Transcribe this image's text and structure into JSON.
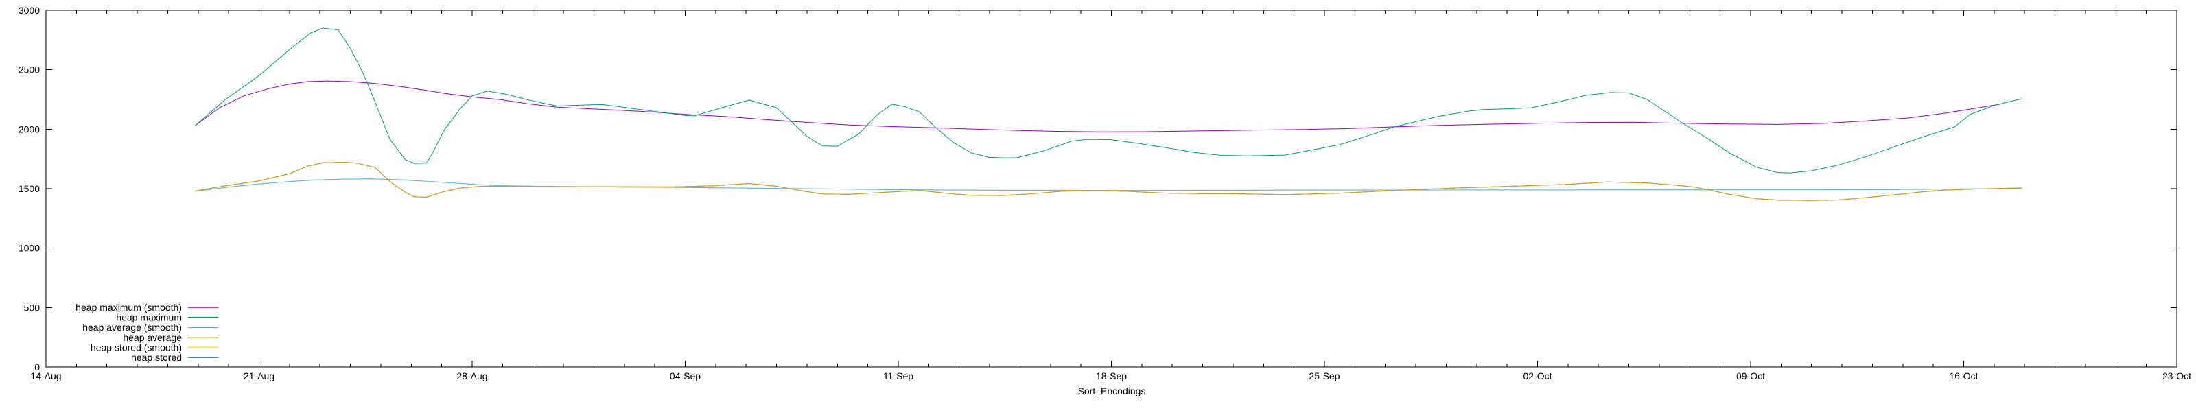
{
  "chart_data": {
    "type": "line",
    "title": "",
    "xlabel": "Sort_Encodings",
    "ylabel": "",
    "x_axis": {
      "tick_labels": [
        "14-Aug",
        "21-Aug",
        "28-Aug",
        "04-Sep",
        "11-Sep",
        "18-Sep",
        "25-Sep",
        "02-Oct",
        "09-Oct",
        "16-Oct",
        "23-Oct"
      ],
      "major_tick_interval_days": 7,
      "minor_tick_interval_days": 1,
      "range_days": [
        0,
        70
      ],
      "mirrored_ticks": true
    },
    "y_axis": {
      "ticks": [
        0,
        500,
        1000,
        1500,
        2000,
        2500,
        3000
      ],
      "range": [
        0,
        3000
      ],
      "mirrored_ticks": true
    },
    "grid": "off",
    "legend": {
      "position": "inside-bottom-left",
      "entries": [
        {
          "label": "heap maximum (smooth)",
          "color": "#9400d3"
        },
        {
          "label": "heap maximum",
          "color": "#009e73"
        },
        {
          "label": "heap average (smooth)",
          "color": "#56b4e9"
        },
        {
          "label": "heap average",
          "color": "#e69f00"
        },
        {
          "label": "heap stored (smooth)",
          "color": "#f0e442"
        },
        {
          "label": "heap stored",
          "color": "#0072b2"
        }
      ]
    },
    "series": [
      {
        "name": "heap stored (smooth)",
        "color": "#f0e442",
        "points_ref": "heap average (smooth)",
        "note": "coincides with heap average (smooth); hidden beneath it"
      },
      {
        "name": "heap stored",
        "color": "#0072b2",
        "points_ref": "heap average",
        "note": "coincides with heap average; hidden beneath it"
      },
      {
        "name": "heap average (smooth)",
        "color": "#56b4e9",
        "points": [
          [
            4.9,
            1478
          ],
          [
            5.9,
            1510
          ],
          [
            7.0,
            1540
          ],
          [
            8.0,
            1560
          ],
          [
            8.9,
            1573
          ],
          [
            9.8,
            1580
          ],
          [
            10.7,
            1582
          ],
          [
            11.6,
            1575
          ],
          [
            12.5,
            1562
          ],
          [
            13.4,
            1548
          ],
          [
            14.3,
            1532
          ],
          [
            15.2,
            1524
          ],
          [
            16.8,
            1518
          ],
          [
            18.8,
            1514
          ],
          [
            21.0,
            1510
          ],
          [
            23.3,
            1504
          ],
          [
            25.5,
            1498
          ],
          [
            27.8,
            1492
          ],
          [
            29.2,
            1489
          ],
          [
            31.0,
            1487
          ],
          [
            33.2,
            1486
          ],
          [
            35.5,
            1485
          ],
          [
            37.8,
            1486
          ],
          [
            40.0,
            1487
          ],
          [
            42.3,
            1488
          ],
          [
            44.6,
            1488
          ],
          [
            46.8,
            1489
          ],
          [
            49.1,
            1489
          ],
          [
            51.4,
            1490
          ],
          [
            53.6,
            1490
          ],
          [
            55.9,
            1491
          ],
          [
            58.1,
            1491
          ],
          [
            60.4,
            1492
          ],
          [
            61.6,
            1494
          ],
          [
            63.2,
            1498
          ],
          [
            64.9,
            1503
          ]
        ]
      },
      {
        "name": "heap average",
        "color": "#e69f00",
        "points": [
          [
            4.9,
            1480
          ],
          [
            5.9,
            1525
          ],
          [
            7.0,
            1565
          ],
          [
            8.0,
            1625
          ],
          [
            8.6,
            1690
          ],
          [
            9.1,
            1718
          ],
          [
            9.8,
            1722
          ],
          [
            10.2,
            1715
          ],
          [
            10.8,
            1680
          ],
          [
            11.3,
            1560
          ],
          [
            11.8,
            1470
          ],
          [
            12.1,
            1432
          ],
          [
            12.5,
            1428
          ],
          [
            13.0,
            1470
          ],
          [
            13.6,
            1505
          ],
          [
            14.3,
            1520
          ],
          [
            15.2,
            1522
          ],
          [
            16.8,
            1518
          ],
          [
            18.8,
            1516
          ],
          [
            20.6,
            1515
          ],
          [
            21.9,
            1525
          ],
          [
            23.1,
            1543
          ],
          [
            24.0,
            1520
          ],
          [
            24.9,
            1478
          ],
          [
            25.5,
            1455
          ],
          [
            26.4,
            1452
          ],
          [
            27.6,
            1470
          ],
          [
            28.7,
            1485
          ],
          [
            29.6,
            1460
          ],
          [
            30.4,
            1444
          ],
          [
            31.4,
            1442
          ],
          [
            32.3,
            1455
          ],
          [
            33.4,
            1478
          ],
          [
            34.6,
            1484
          ],
          [
            35.7,
            1475
          ],
          [
            36.8,
            1462
          ],
          [
            37.9,
            1458
          ],
          [
            39.1,
            1457
          ],
          [
            40.7,
            1450
          ],
          [
            42.5,
            1462
          ],
          [
            44.5,
            1487
          ],
          [
            46.3,
            1505
          ],
          [
            48.1,
            1520
          ],
          [
            49.9,
            1535
          ],
          [
            51.3,
            1556
          ],
          [
            52.6,
            1548
          ],
          [
            53.5,
            1530
          ],
          [
            54.2,
            1512
          ],
          [
            55.3,
            1452
          ],
          [
            56.2,
            1415
          ],
          [
            56.9,
            1403
          ],
          [
            58.0,
            1400
          ],
          [
            58.9,
            1405
          ],
          [
            59.8,
            1425
          ],
          [
            60.7,
            1448
          ],
          [
            61.6,
            1472
          ],
          [
            62.3,
            1487
          ],
          [
            63.2,
            1496
          ],
          [
            64.9,
            1506
          ]
        ]
      },
      {
        "name": "heap maximum (smooth)",
        "color": "#9400d3",
        "points": [
          [
            4.9,
            2030
          ],
          [
            5.7,
            2180
          ],
          [
            6.5,
            2280
          ],
          [
            7.3,
            2340
          ],
          [
            8.0,
            2380
          ],
          [
            8.6,
            2400
          ],
          [
            9.3,
            2405
          ],
          [
            10.0,
            2400
          ],
          [
            10.8,
            2385
          ],
          [
            11.6,
            2360
          ],
          [
            12.4,
            2330
          ],
          [
            13.1,
            2300
          ],
          [
            14.0,
            2272
          ],
          [
            14.9,
            2250
          ],
          [
            15.8,
            2215
          ],
          [
            16.8,
            2185
          ],
          [
            18.8,
            2160
          ],
          [
            19.9,
            2145
          ],
          [
            21.0,
            2125
          ],
          [
            22.4,
            2105
          ],
          [
            23.7,
            2080
          ],
          [
            25.1,
            2055
          ],
          [
            26.4,
            2035
          ],
          [
            27.8,
            2022
          ],
          [
            29.2,
            2012
          ],
          [
            30.5,
            2000
          ],
          [
            31.9,
            1990
          ],
          [
            33.2,
            1982
          ],
          [
            34.6,
            1977
          ],
          [
            36.0,
            1978
          ],
          [
            37.3,
            1983
          ],
          [
            38.6,
            1988
          ],
          [
            40.0,
            1993
          ],
          [
            41.3,
            1998
          ],
          [
            42.7,
            2005
          ],
          [
            44.3,
            2020
          ],
          [
            45.8,
            2032
          ],
          [
            47.4,
            2042
          ],
          [
            49.0,
            2050
          ],
          [
            50.6,
            2056
          ],
          [
            52.1,
            2058
          ],
          [
            53.7,
            2050
          ],
          [
            55.3,
            2044
          ],
          [
            56.9,
            2040
          ],
          [
            58.5,
            2050
          ],
          [
            59.8,
            2070
          ],
          [
            61.2,
            2095
          ],
          [
            62.4,
            2135
          ],
          [
            63.1,
            2164
          ],
          [
            64.2,
            2210
          ]
        ]
      },
      {
        "name": "heap maximum",
        "color": "#009e73",
        "points": [
          [
            4.9,
            2030
          ],
          [
            5.9,
            2250
          ],
          [
            7.0,
            2450
          ],
          [
            8.0,
            2670
          ],
          [
            8.7,
            2810
          ],
          [
            9.1,
            2850
          ],
          [
            9.6,
            2835
          ],
          [
            10.0,
            2680
          ],
          [
            10.4,
            2480
          ],
          [
            10.7,
            2300
          ],
          [
            11.3,
            1915
          ],
          [
            11.8,
            1745
          ],
          [
            12.1,
            1713
          ],
          [
            12.5,
            1715
          ],
          [
            12.7,
            1800
          ],
          [
            13.1,
            2000
          ],
          [
            13.6,
            2170
          ],
          [
            14.0,
            2280
          ],
          [
            14.5,
            2320
          ],
          [
            15.1,
            2295
          ],
          [
            15.7,
            2255
          ],
          [
            16.3,
            2220
          ],
          [
            16.8,
            2195
          ],
          [
            17.9,
            2205
          ],
          [
            18.3,
            2207
          ],
          [
            19.7,
            2160
          ],
          [
            21.0,
            2115
          ],
          [
            21.3,
            2112
          ],
          [
            22.2,
            2180
          ],
          [
            23.1,
            2245
          ],
          [
            24.0,
            2180
          ],
          [
            24.5,
            2060
          ],
          [
            25.0,
            1940
          ],
          [
            25.5,
            1860
          ],
          [
            26.0,
            1857
          ],
          [
            26.7,
            1960
          ],
          [
            27.3,
            2120
          ],
          [
            27.8,
            2210
          ],
          [
            28.2,
            2190
          ],
          [
            28.7,
            2145
          ],
          [
            29.2,
            2020
          ],
          [
            29.8,
            1890
          ],
          [
            30.4,
            1800
          ],
          [
            31.0,
            1763
          ],
          [
            31.5,
            1758
          ],
          [
            31.9,
            1760
          ],
          [
            32.8,
            1820
          ],
          [
            33.7,
            1900
          ],
          [
            34.2,
            1915
          ],
          [
            35.0,
            1912
          ],
          [
            35.9,
            1880
          ],
          [
            36.8,
            1845
          ],
          [
            37.7,
            1805
          ],
          [
            38.6,
            1780
          ],
          [
            39.5,
            1775
          ],
          [
            40.7,
            1782
          ],
          [
            42.5,
            1870
          ],
          [
            43.6,
            1960
          ],
          [
            44.3,
            2020
          ],
          [
            45.2,
            2075
          ],
          [
            45.8,
            2110
          ],
          [
            46.7,
            2150
          ],
          [
            47.2,
            2165
          ],
          [
            48.1,
            2172
          ],
          [
            48.8,
            2180
          ],
          [
            49.7,
            2230
          ],
          [
            50.6,
            2285
          ],
          [
            51.4,
            2308
          ],
          [
            52.0,
            2305
          ],
          [
            52.6,
            2250
          ],
          [
            53.8,
            2045
          ],
          [
            54.6,
            1920
          ],
          [
            55.3,
            1800
          ],
          [
            56.2,
            1680
          ],
          [
            56.9,
            1635
          ],
          [
            57.3,
            1632
          ],
          [
            58.0,
            1650
          ],
          [
            58.9,
            1700
          ],
          [
            59.8,
            1770
          ],
          [
            60.7,
            1850
          ],
          [
            61.6,
            1930
          ],
          [
            62.7,
            2020
          ],
          [
            63.2,
            2123
          ],
          [
            64.0,
            2200
          ],
          [
            64.9,
            2256
          ]
        ]
      }
    ]
  }
}
